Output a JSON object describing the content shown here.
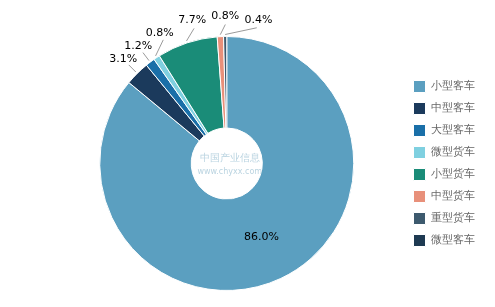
{
  "chart_data": {
    "type": "doughnut",
    "categories": [
      "小型客车",
      "中型客车",
      "大型客车",
      "微型货车",
      "小型货车",
      "中型货车",
      "重型货车",
      "微型客车"
    ],
    "values": [
      86.0,
      3.1,
      1.2,
      0.8,
      7.7,
      0.8,
      0.4,
      0.0
    ],
    "value_labels": [
      "86.0%",
      "3.1%",
      "1.2%",
      "0.8%",
      "7.7%",
      "0.8%",
      "0.4%",
      null
    ],
    "colors": [
      "#5b9fc0",
      "#1b3a5c",
      "#1a6fa8",
      "#7fd0e0",
      "#1a8c78",
      "#e8907a",
      "#3d5a6e",
      "#1e3a52"
    ],
    "data_labels": true,
    "legend": "right",
    "annotations": [
      "中国产业信息",
      "www.chyxx.com"
    ]
  }
}
